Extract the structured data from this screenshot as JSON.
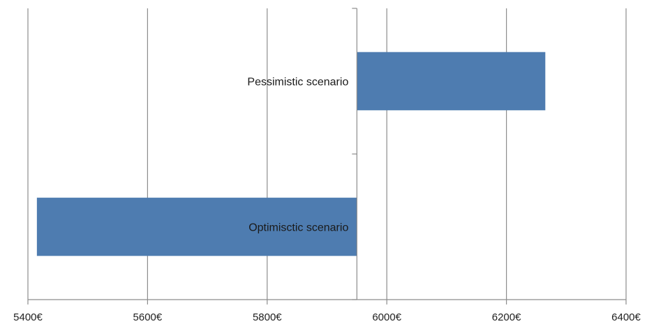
{
  "chart_data": {
    "type": "bar",
    "orientation": "horizontal",
    "title": "",
    "xlabel": "",
    "ylabel": "",
    "xlim": [
      5400,
      6400
    ],
    "x_ticks": [
      5400,
      5600,
      5800,
      6000,
      6200,
      6400
    ],
    "x_tick_labels": [
      "5400€",
      "5600€",
      "5800€",
      "6000€",
      "6200€",
      "6400€"
    ],
    "base_value": 5950,
    "categories": [
      "Pessimistic scenario",
      "Optimisctic scenario"
    ],
    "values": [
      6265,
      5415
    ],
    "bar_color": "#4e7cb0",
    "grid": true,
    "legend": false
  }
}
